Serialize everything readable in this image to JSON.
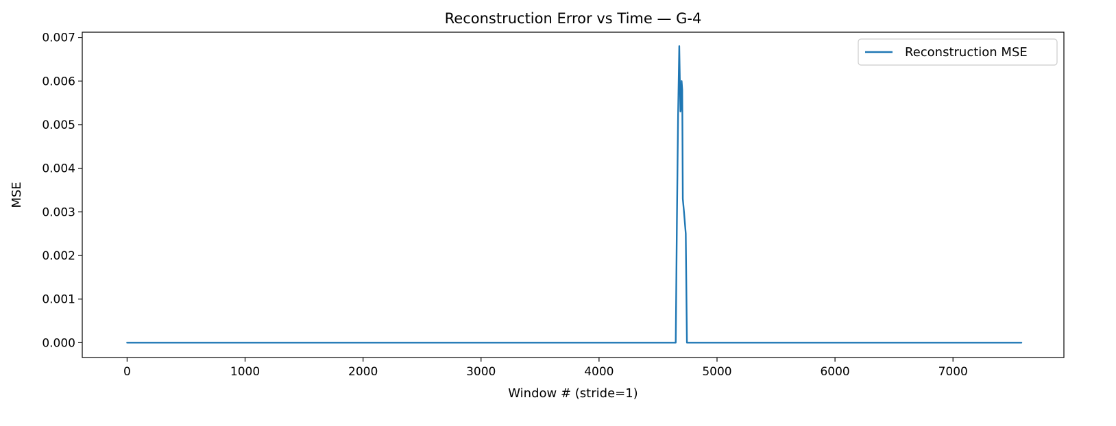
{
  "chart_data": {
    "type": "line",
    "title": "Reconstruction Error vs Time — G-4",
    "xlabel": "Window # (stride=1)",
    "ylabel": "MSE",
    "xlim": [
      -380,
      7940
    ],
    "ylim": [
      -0.00034,
      0.00712
    ],
    "xticks": [
      0,
      1000,
      2000,
      3000,
      4000,
      5000,
      6000,
      7000
    ],
    "xtick_labels": [
      "0",
      "1000",
      "2000",
      "3000",
      "4000",
      "5000",
      "6000",
      "7000"
    ],
    "yticks": [
      0,
      0.001,
      0.002,
      0.003,
      0.004,
      0.005,
      0.006,
      0.007
    ],
    "ytick_labels": [
      "0.000",
      "0.001",
      "0.002",
      "0.003",
      "0.004",
      "0.005",
      "0.006",
      "0.007"
    ],
    "grid": false,
    "legend_position": "top-right",
    "series": [
      {
        "name": "Reconstruction MSE",
        "color": "#1f77b4",
        "x": [
          0,
          500,
          1000,
          1500,
          2000,
          2500,
          3000,
          3500,
          4000,
          4500,
          4650,
          4660,
          4670,
          4675,
          4680,
          4685,
          4690,
          4695,
          4700,
          4705,
          4710,
          4720,
          4735,
          4745,
          4760,
          5000,
          5500,
          6000,
          6500,
          7000,
          7580
        ],
        "y": [
          0.0,
          0.0,
          0.0,
          0.0,
          0.0,
          0.0,
          0.0,
          0.0,
          0.0,
          0.0,
          0.0,
          0.0028,
          0.0052,
          0.006,
          0.0068,
          0.006,
          0.0053,
          0.0054,
          0.006,
          0.0058,
          0.0033,
          0.003,
          0.0025,
          0.0,
          0.0,
          0.0,
          0.0,
          0.0,
          0.0,
          0.0,
          0.0
        ]
      }
    ]
  }
}
